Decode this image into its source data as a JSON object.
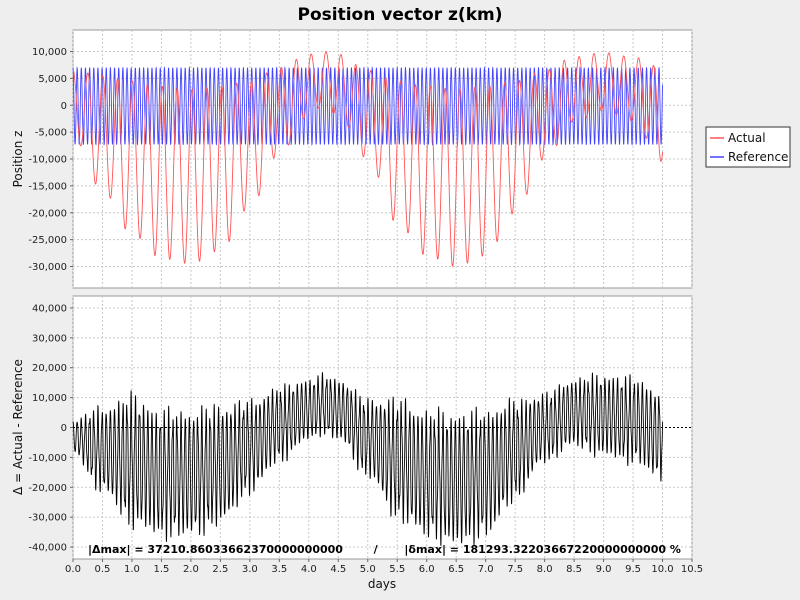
{
  "chart_data": [
    {
      "type": "line",
      "title": "Position vector z(km)",
      "ylabel": "Position z",
      "xlabel": "",
      "xlim": [
        0,
        10.5
      ],
      "ylim": [
        -34000,
        14000
      ],
      "y_ticks": [
        -30000,
        -25000,
        -20000,
        -15000,
        -10000,
        -5000,
        0,
        5000,
        10000
      ],
      "y_tick_labels": [
        "-30,000",
        "-25,000",
        "-20,000",
        "-15,000",
        "-10,000",
        "-5,000",
        "0",
        "5,000",
        "10,000"
      ],
      "grid": true,
      "legend_placement": "right",
      "series": [
        {
          "name": "Actual",
          "color": "#ff5555",
          "x": [
            0.0,
            0.5,
            1.0,
            1.5,
            2.0,
            2.5,
            3.0,
            3.5,
            4.0,
            4.25,
            4.5,
            5.0,
            5.5,
            6.0,
            6.5,
            7.0,
            7.5,
            8.0,
            8.5,
            9.0,
            9.5,
            10.0
          ],
          "upper": [
            6500,
            5500,
            4500,
            3500,
            3000,
            3500,
            4500,
            7000,
            9500,
            10000,
            9500,
            6500,
            4500,
            3500,
            3000,
            3500,
            4500,
            6500,
            9000,
            9800,
            9000,
            7000
          ],
          "lower": [
            -6000,
            -16000,
            -24000,
            -28500,
            -29500,
            -27000,
            -19000,
            -9000,
            -2000,
            0,
            -2000,
            -10000,
            -22000,
            -28000,
            -30000,
            -28000,
            -20000,
            -10000,
            -3000,
            -1000,
            -3000,
            -10500
          ]
        },
        {
          "name": "Reference",
          "color": "#4444ff",
          "x": [
            0.0,
            10.0
          ],
          "upper": [
            7000,
            7000
          ],
          "lower": [
            -7300,
            -7300
          ]
        }
      ]
    },
    {
      "type": "line",
      "ylabel": "Δ = Actual - Reference",
      "xlabel": "days",
      "xlim": [
        0,
        10.5
      ],
      "ylim": [
        -44000,
        44000
      ],
      "x_ticks": [
        0.0,
        0.5,
        1.0,
        1.5,
        2.0,
        2.5,
        3.0,
        3.5,
        4.0,
        4.5,
        5.0,
        5.5,
        6.0,
        6.5,
        7.0,
        7.5,
        8.0,
        8.5,
        9.0,
        9.5,
        10.0,
        10.5
      ],
      "x_tick_labels": [
        "0.0",
        "0.5",
        "1.0",
        "1.5",
        "2.0",
        "2.5",
        "3.0",
        "3.5",
        "4.0",
        "4.5",
        "5.0",
        "5.5",
        "6.0",
        "6.5",
        "7.0",
        "7.5",
        "8.0",
        "8.5",
        "9.0",
        "9.5",
        "10.0",
        "10.5"
      ],
      "y_ticks": [
        -40000,
        -30000,
        -20000,
        -10000,
        0,
        10000,
        20000,
        30000,
        40000
      ],
      "y_tick_labels": [
        "-40,000",
        "-30,000",
        "-20,000",
        "-10,000",
        "0",
        "10,000",
        "20,000",
        "30,000",
        "40,000"
      ],
      "grid": true,
      "series": [
        {
          "color": "#000000",
          "x": [
            0.0,
            0.5,
            1.0,
            1.5,
            2.0,
            2.5,
            3.0,
            3.5,
            4.0,
            4.25,
            4.5,
            5.0,
            5.5,
            6.0,
            6.5,
            7.0,
            7.5,
            8.0,
            8.5,
            9.0,
            9.5,
            10.0
          ],
          "upper": [
            2000,
            5000,
            8000,
            3000,
            3000,
            5000,
            7000,
            12000,
            15000,
            16500,
            15000,
            8000,
            7000,
            3000,
            2000,
            3000,
            7000,
            10000,
            15000,
            16000,
            15000,
            10000
          ],
          "lower": [
            -8000,
            -20000,
            -30000,
            -34000,
            -34000,
            -30000,
            -20000,
            -10000,
            -3000,
            -1000,
            -3000,
            -15000,
            -28000,
            -34000,
            -37000,
            -34000,
            -22000,
            -10000,
            -5000,
            -8000,
            -10000,
            -16000
          ]
        }
      ],
      "annotation": "|Δmax| = 37210.86033662370000000000        /       |δmax| = 181293.32203667220000000000 %"
    }
  ]
}
